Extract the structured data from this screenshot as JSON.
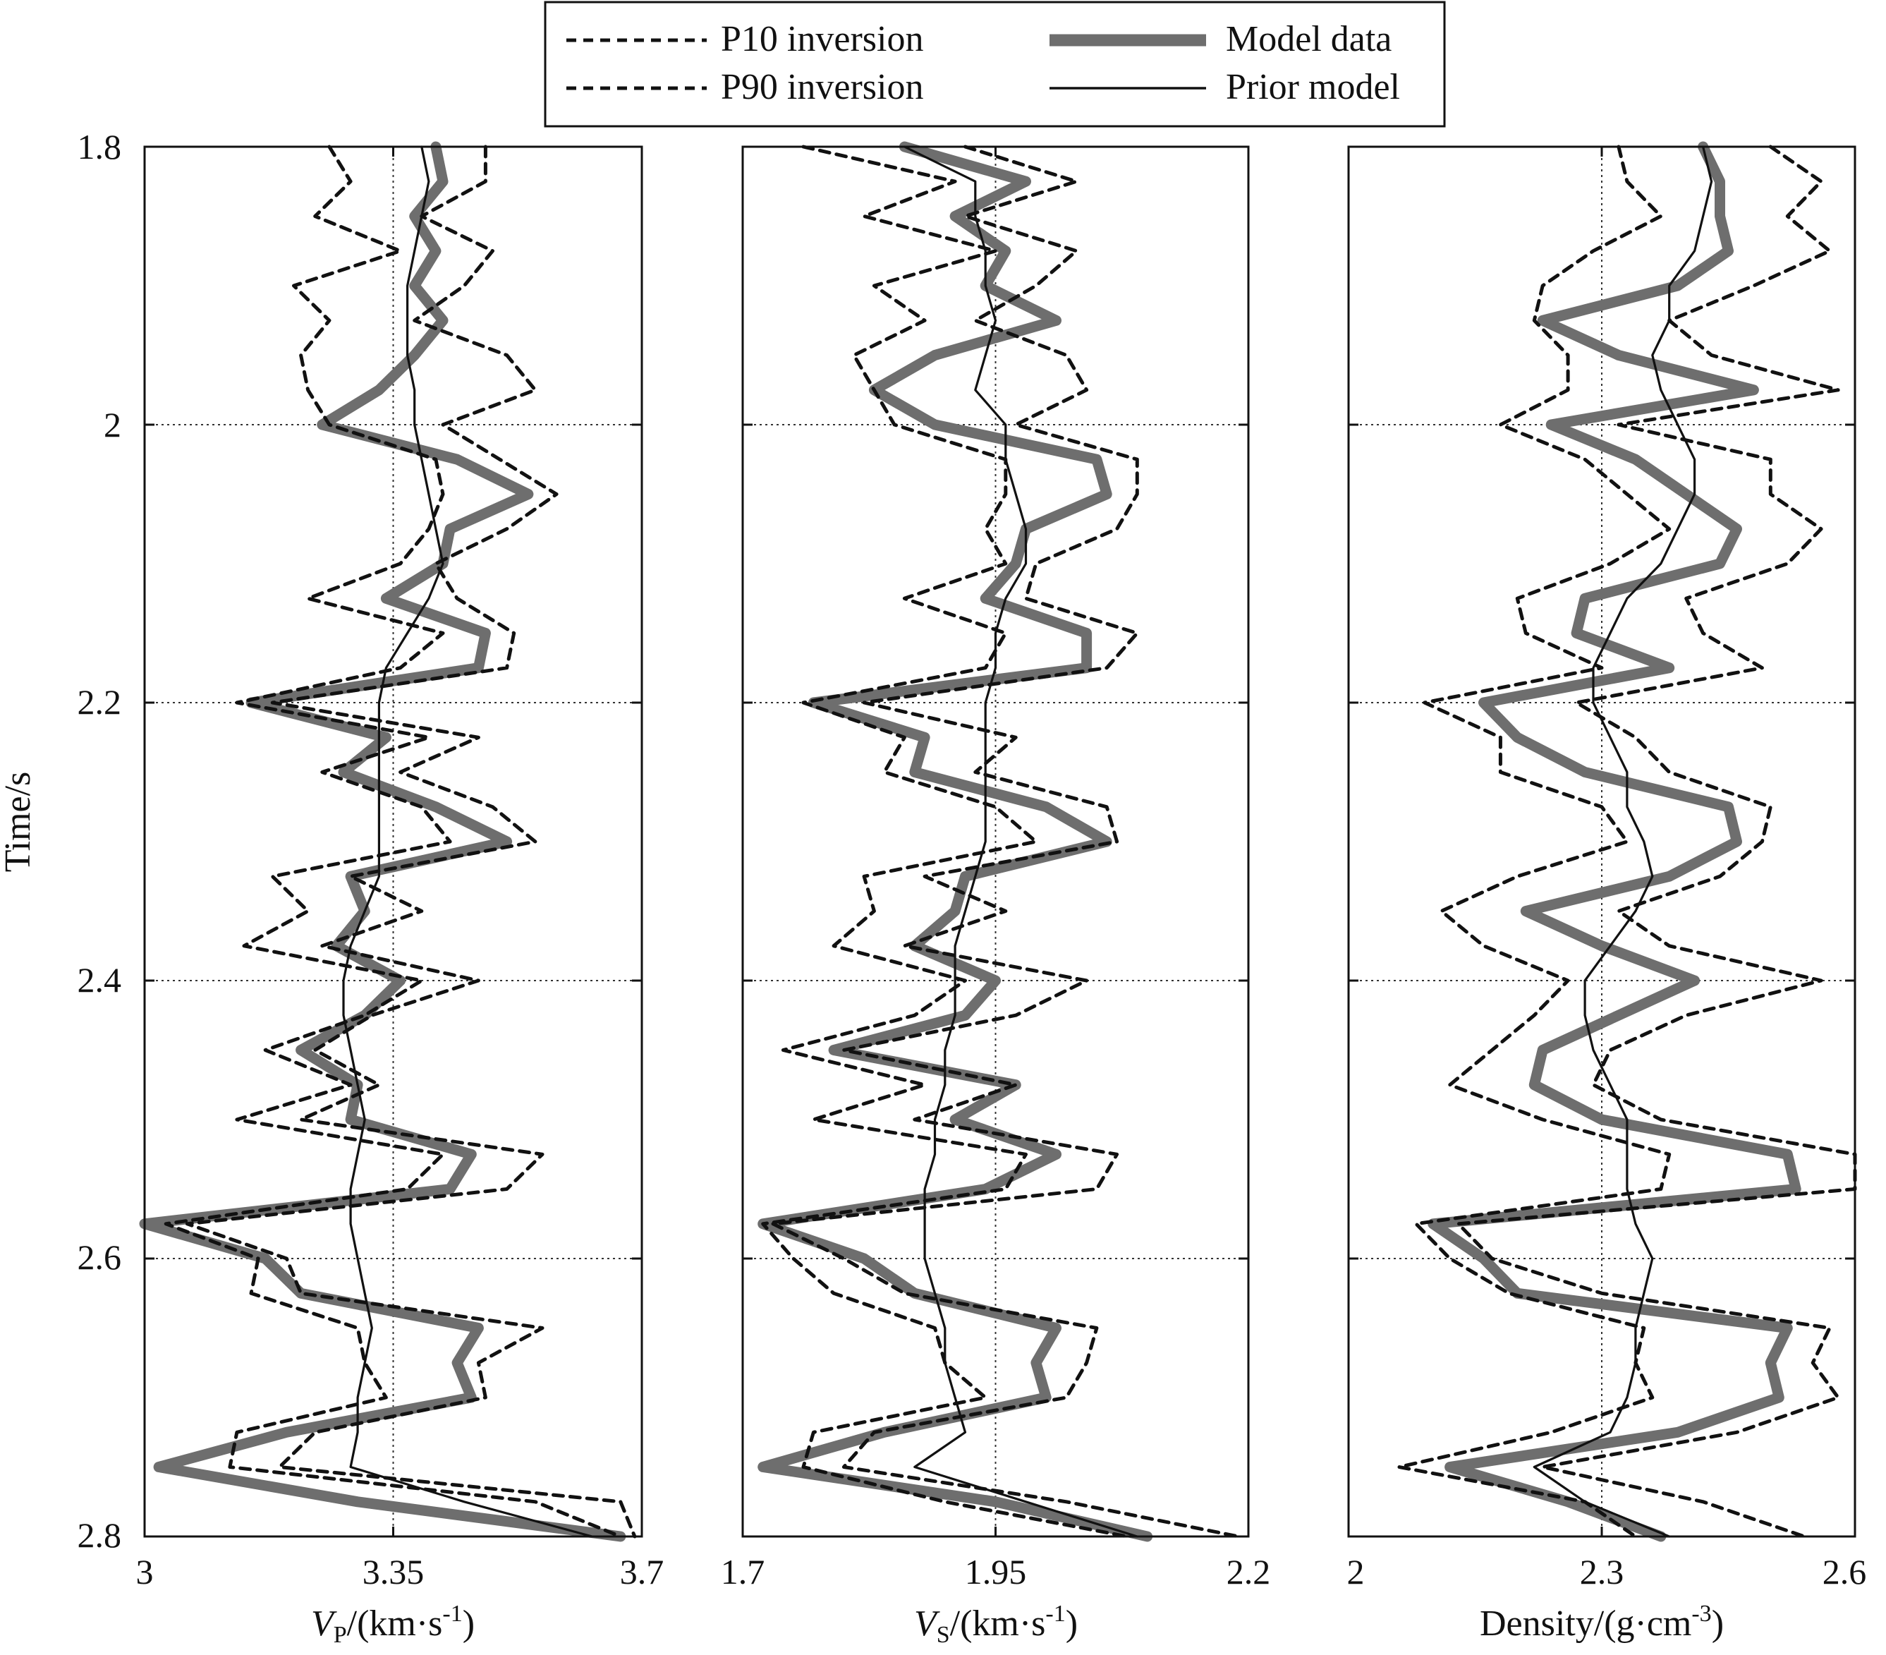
{
  "legend": {
    "entries": [
      {
        "label": "P10 inversion",
        "style": "dashed",
        "color": "#111111"
      },
      {
        "label": "P90 inversion",
        "style": "dashed",
        "color": "#111111"
      },
      {
        "label": "Model data",
        "style": "thick",
        "color": "#6e6e6e"
      },
      {
        "label": "Prior model",
        "style": "solid",
        "color": "#111111"
      }
    ]
  },
  "y_axis": {
    "label": "Time/s",
    "ticks": [
      1.8,
      2.0,
      2.2,
      2.4,
      2.6,
      2.8
    ],
    "tick_labels": [
      "1.8",
      "2",
      "2.2",
      "2.4",
      "2.6",
      "2.8"
    ],
    "range": [
      1.8,
      2.8
    ],
    "reversed": true
  },
  "chart_data": [
    {
      "type": "line",
      "xlabel_main": "V",
      "xlabel_sub": "P",
      "xlabel_rest": "/(km·s",
      "xlabel_sup": "-1",
      "xlabel_end": ")",
      "xlim": [
        3.0,
        3.7
      ],
      "xticks": [
        3.0,
        3.35,
        3.7
      ],
      "xtick_labels": [
        "3",
        "3.35",
        "3.7"
      ],
      "ref_x": 3.35,
      "ref_y": [
        2.0,
        2.2,
        2.4,
        2.6
      ],
      "y": [
        1.8,
        1.825,
        1.85,
        1.875,
        1.9,
        1.925,
        1.95,
        1.975,
        2.0,
        2.025,
        2.05,
        2.075,
        2.1,
        2.125,
        2.15,
        2.175,
        2.2,
        2.225,
        2.25,
        2.275,
        2.3,
        2.325,
        2.35,
        2.375,
        2.4,
        2.425,
        2.45,
        2.475,
        2.5,
        2.525,
        2.55,
        2.575,
        2.6,
        2.625,
        2.65,
        2.675,
        2.7,
        2.725,
        2.75,
        2.775,
        2.8
      ],
      "series": [
        {
          "name": "Model data",
          "values": [
            3.41,
            3.42,
            3.38,
            3.41,
            3.38,
            3.42,
            3.38,
            3.33,
            3.25,
            3.44,
            3.54,
            3.43,
            3.42,
            3.34,
            3.48,
            3.47,
            3.15,
            3.34,
            3.28,
            3.41,
            3.51,
            3.29,
            3.31,
            3.27,
            3.36,
            3.31,
            3.22,
            3.3,
            3.29,
            3.46,
            3.43,
            3.0,
            3.17,
            3.22,
            3.47,
            3.44,
            3.46,
            3.2,
            3.02,
            3.3,
            3.67
          ]
        },
        {
          "name": "P10 inversion",
          "values": [
            3.26,
            3.29,
            3.24,
            3.36,
            3.21,
            3.26,
            3.22,
            3.23,
            3.26,
            3.41,
            3.42,
            3.4,
            3.36,
            3.23,
            3.42,
            3.36,
            3.13,
            3.4,
            3.25,
            3.39,
            3.43,
            3.18,
            3.23,
            3.14,
            3.39,
            3.31,
            3.17,
            3.29,
            3.13,
            3.42,
            3.37,
            3.03,
            3.16,
            3.15,
            3.3,
            3.31,
            3.34,
            3.13,
            3.12,
            3.55,
            3.67
          ]
        },
        {
          "name": "P90 inversion",
          "values": [
            3.48,
            3.48,
            3.39,
            3.49,
            3.45,
            3.38,
            3.51,
            3.55,
            3.42,
            3.5,
            3.58,
            3.51,
            3.41,
            3.44,
            3.52,
            3.51,
            3.18,
            3.47,
            3.36,
            3.49,
            3.55,
            3.29,
            3.39,
            3.25,
            3.47,
            3.32,
            3.24,
            3.33,
            3.22,
            3.56,
            3.51,
            3.06,
            3.2,
            3.22,
            3.56,
            3.47,
            3.48,
            3.24,
            3.19,
            3.67,
            3.69
          ]
        },
        {
          "name": "Prior model",
          "values": [
            3.39,
            3.4,
            3.39,
            3.38,
            3.37,
            3.37,
            3.37,
            3.38,
            3.38,
            3.39,
            3.4,
            3.41,
            3.42,
            3.4,
            3.37,
            3.34,
            3.33,
            3.33,
            3.33,
            3.33,
            3.33,
            3.33,
            3.31,
            3.29,
            3.28,
            3.28,
            3.29,
            3.3,
            3.31,
            3.3,
            3.29,
            3.29,
            3.3,
            3.31,
            3.32,
            3.31,
            3.3,
            3.3,
            3.29,
            3.45,
            3.63
          ]
        }
      ]
    },
    {
      "type": "line",
      "xlabel_main": "V",
      "xlabel_sub": "S",
      "xlabel_rest": "/(km·s",
      "xlabel_sup": "-1",
      "xlabel_end": ")",
      "xlim": [
        1.7,
        2.2
      ],
      "xticks": [
        1.7,
        1.95,
        2.2
      ],
      "xtick_labels": [
        "1.7",
        "1.95",
        "2.2"
      ],
      "ref_x": 1.95,
      "ref_y": [
        2.0,
        2.2,
        2.4,
        2.6
      ],
      "y": [
        1.8,
        1.825,
        1.85,
        1.875,
        1.9,
        1.925,
        1.95,
        1.975,
        2.0,
        2.025,
        2.05,
        2.075,
        2.1,
        2.125,
        2.15,
        2.175,
        2.2,
        2.225,
        2.25,
        2.275,
        2.3,
        2.325,
        2.35,
        2.375,
        2.4,
        2.425,
        2.45,
        2.475,
        2.5,
        2.525,
        2.55,
        2.575,
        2.6,
        2.625,
        2.65,
        2.675,
        2.7,
        2.725,
        2.75,
        2.775,
        2.8
      ],
      "series": [
        {
          "name": "Model data",
          "values": [
            1.86,
            1.98,
            1.91,
            1.96,
            1.94,
            2.01,
            1.89,
            1.83,
            1.89,
            2.05,
            2.06,
            1.98,
            1.97,
            1.94,
            2.04,
            2.04,
            1.77,
            1.88,
            1.87,
            2.0,
            2.06,
            1.92,
            1.91,
            1.87,
            1.95,
            1.92,
            1.79,
            1.97,
            1.91,
            2.01,
            1.94,
            1.72,
            1.82,
            1.87,
            2.01,
            1.99,
            2.0,
            1.84,
            1.72,
            1.95,
            2.1
          ]
        },
        {
          "name": "P10 inversion",
          "values": [
            1.76,
            1.91,
            1.82,
            1.95,
            1.83,
            1.88,
            1.81,
            1.83,
            1.85,
            1.96,
            1.96,
            1.94,
            1.96,
            1.86,
            1.96,
            1.94,
            1.76,
            1.86,
            1.84,
            1.95,
            1.99,
            1.82,
            1.83,
            1.79,
            1.92,
            1.87,
            1.74,
            1.88,
            1.77,
            1.98,
            1.96,
            1.72,
            1.75,
            1.79,
            1.89,
            1.9,
            1.94,
            1.77,
            1.76,
            1.9,
            2.08
          ]
        },
        {
          "name": "P90 inversion",
          "values": [
            1.92,
            2.03,
            1.92,
            2.03,
            1.99,
            1.93,
            2.02,
            2.04,
            1.97,
            2.09,
            2.09,
            2.07,
            1.99,
            1.98,
            2.09,
            2.06,
            1.82,
            1.97,
            1.93,
            2.06,
            2.07,
            1.88,
            1.96,
            1.86,
            2.04,
            1.97,
            1.8,
            1.97,
            1.87,
            2.07,
            2.05,
            1.73,
            1.8,
            1.86,
            2.05,
            2.04,
            2.02,
            1.83,
            1.8,
            2.02,
            2.19
          ]
        },
        {
          "name": "Prior model",
          "values": [
            1.86,
            1.93,
            1.93,
            1.94,
            1.94,
            1.95,
            1.94,
            1.93,
            1.96,
            1.96,
            1.97,
            1.98,
            1.98,
            1.96,
            1.95,
            1.95,
            1.94,
            1.94,
            1.94,
            1.94,
            1.94,
            1.93,
            1.92,
            1.91,
            1.91,
            1.91,
            1.9,
            1.9,
            1.89,
            1.89,
            1.88,
            1.88,
            1.88,
            1.89,
            1.9,
            1.9,
            1.91,
            1.92,
            1.87,
            1.98,
            2.09
          ]
        }
      ]
    },
    {
      "type": "line",
      "xlabel_main": "Density/(g·cm",
      "xlabel_sub": "",
      "xlabel_rest": "",
      "xlabel_sup": "-3",
      "xlabel_end": ")",
      "xlim": [
        2.0,
        2.6
      ],
      "xticks": [
        2.0,
        2.3,
        2.6
      ],
      "xtick_labels": [
        "2",
        "2.3",
        "2.6"
      ],
      "ref_x": 2.3,
      "ref_y": [
        2.0,
        2.2,
        2.4,
        2.6
      ],
      "y": [
        1.8,
        1.825,
        1.85,
        1.875,
        1.9,
        1.925,
        1.95,
        1.975,
        2.0,
        2.025,
        2.05,
        2.075,
        2.1,
        2.125,
        2.15,
        2.175,
        2.2,
        2.225,
        2.25,
        2.275,
        2.3,
        2.325,
        2.35,
        2.375,
        2.4,
        2.425,
        2.45,
        2.475,
        2.5,
        2.525,
        2.55,
        2.575,
        2.6,
        2.625,
        2.65,
        2.675,
        2.7,
        2.725,
        2.75,
        2.775,
        2.8
      ],
      "series": [
        {
          "name": "Model data",
          "values": [
            2.42,
            2.44,
            2.44,
            2.45,
            2.39,
            2.23,
            2.32,
            2.48,
            2.24,
            2.34,
            2.4,
            2.46,
            2.44,
            2.28,
            2.27,
            2.38,
            2.16,
            2.2,
            2.28,
            2.45,
            2.46,
            2.38,
            2.21,
            2.3,
            2.41,
            2.32,
            2.23,
            2.22,
            2.3,
            2.52,
            2.53,
            2.1,
            2.16,
            2.2,
            2.52,
            2.5,
            2.51,
            2.39,
            2.12,
            2.26,
            2.37
          ]
        },
        {
          "name": "P10 inversion",
          "values": [
            2.32,
            2.33,
            2.37,
            2.29,
            2.23,
            2.22,
            2.26,
            2.26,
            2.18,
            2.28,
            2.33,
            2.38,
            2.31,
            2.2,
            2.21,
            2.3,
            2.09,
            2.18,
            2.18,
            2.3,
            2.33,
            2.2,
            2.11,
            2.16,
            2.26,
            2.22,
            2.17,
            2.12,
            2.23,
            2.38,
            2.37,
            2.08,
            2.12,
            2.19,
            2.35,
            2.34,
            2.36,
            2.24,
            2.06,
            2.28,
            2.34
          ]
        },
        {
          "name": "P90 inversion",
          "values": [
            2.5,
            2.56,
            2.52,
            2.57,
            2.48,
            2.38,
            2.43,
            2.58,
            2.32,
            2.5,
            2.5,
            2.56,
            2.52,
            2.4,
            2.42,
            2.49,
            2.27,
            2.34,
            2.38,
            2.5,
            2.49,
            2.44,
            2.32,
            2.38,
            2.56,
            2.4,
            2.31,
            2.29,
            2.37,
            2.6,
            2.6,
            2.13,
            2.17,
            2.3,
            2.57,
            2.55,
            2.58,
            2.46,
            2.23,
            2.42,
            2.54
          ]
        },
        {
          "name": "Prior model",
          "values": [
            2.42,
            2.43,
            2.42,
            2.41,
            2.38,
            2.38,
            2.36,
            2.37,
            2.39,
            2.41,
            2.41,
            2.39,
            2.37,
            2.33,
            2.31,
            2.29,
            2.29,
            2.31,
            2.33,
            2.33,
            2.35,
            2.36,
            2.34,
            2.31,
            2.28,
            2.28,
            2.29,
            2.31,
            2.33,
            2.33,
            2.33,
            2.34,
            2.36,
            2.35,
            2.34,
            2.34,
            2.33,
            2.31,
            2.22,
            2.28,
            2.38
          ]
        }
      ]
    }
  ]
}
